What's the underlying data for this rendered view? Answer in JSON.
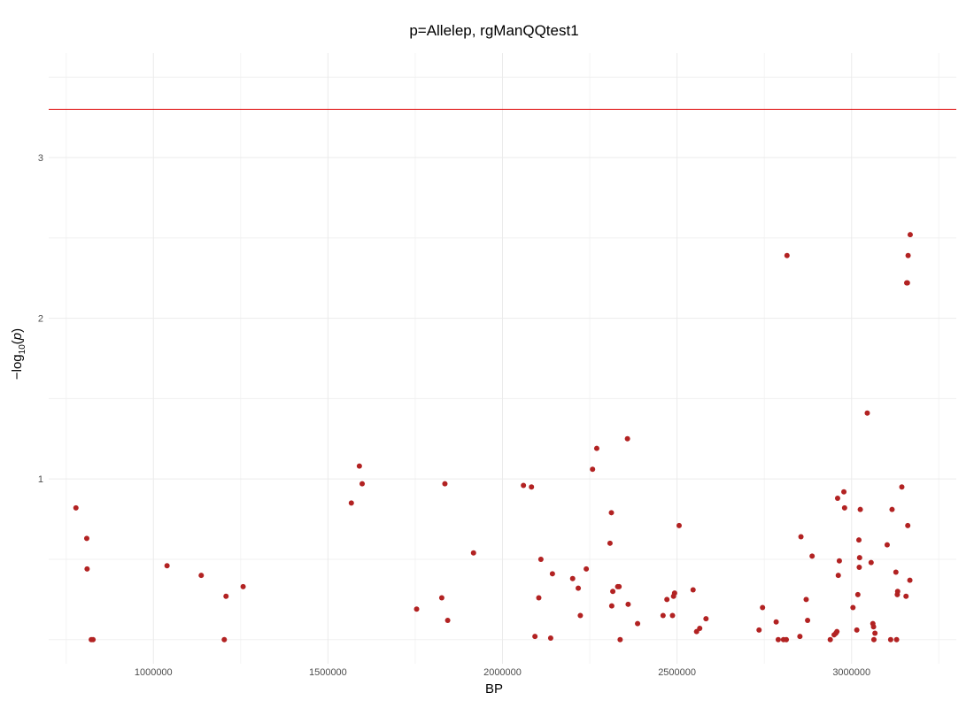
{
  "chart_data": {
    "type": "scatter",
    "title": "p=Allelep, rgManQQtest1",
    "xlabel": "BP",
    "ylabel": {
      "prefix": "−log",
      "subscript": "10",
      "open": "(",
      "variable": "p",
      "close": ")"
    },
    "xlim": [
      700000,
      3300000
    ],
    "ylim": [
      -0.15,
      3.65
    ],
    "x_ticks": [
      {
        "value": 1000000,
        "label": "1000000"
      },
      {
        "value": 1500000,
        "label": "1500000"
      },
      {
        "value": 2000000,
        "label": "2000000"
      },
      {
        "value": 2500000,
        "label": "2500000"
      },
      {
        "value": 3000000,
        "label": "3000000"
      }
    ],
    "y_ticks": [
      {
        "value": 1,
        "label": "1"
      },
      {
        "value": 2,
        "label": "2"
      },
      {
        "value": 3,
        "label": "3"
      }
    ],
    "grid": true,
    "threshold_line": {
      "y": 3.3,
      "color": "#dd0000"
    },
    "point_color": "#b22222",
    "series": [
      {
        "points": [
          [
            778000,
            0.82
          ],
          [
            809000,
            0.63
          ],
          [
            810000,
            0.44
          ],
          [
            822000,
            0.0
          ],
          [
            827000,
            0.0
          ],
          [
            1039000,
            0.46
          ],
          [
            1137000,
            0.4
          ],
          [
            1203000,
            0.0
          ],
          [
            1208000,
            0.27
          ],
          [
            1257000,
            0.33
          ],
          [
            1567000,
            0.85
          ],
          [
            1590000,
            1.08
          ],
          [
            1598000,
            0.97
          ],
          [
            1754000,
            0.19
          ],
          [
            1826000,
            0.26
          ],
          [
            1835000,
            0.97
          ],
          [
            1843000,
            0.12
          ],
          [
            1917000,
            0.54
          ],
          [
            2060000,
            0.96
          ],
          [
            2083000,
            0.95
          ],
          [
            2093000,
            0.02
          ],
          [
            2104000,
            0.26
          ],
          [
            2110000,
            0.5
          ],
          [
            2138000,
            0.01
          ],
          [
            2143000,
            0.41
          ],
          [
            2201000,
            0.38
          ],
          [
            2217000,
            0.32
          ],
          [
            2223000,
            0.15
          ],
          [
            2240000,
            0.44
          ],
          [
            2258000,
            1.06
          ],
          [
            2270000,
            1.19
          ],
          [
            2308000,
            0.6
          ],
          [
            2312000,
            0.79
          ],
          [
            2313000,
            0.21
          ],
          [
            2316000,
            0.3
          ],
          [
            2330000,
            0.33
          ],
          [
            2334000,
            0.33
          ],
          [
            2337000,
            0.0
          ],
          [
            2358000,
            1.25
          ],
          [
            2360000,
            0.22
          ],
          [
            2387000,
            0.1
          ],
          [
            2460000,
            0.15
          ],
          [
            2471000,
            0.25
          ],
          [
            2487000,
            0.15
          ],
          [
            2490000,
            0.27
          ],
          [
            2493000,
            0.29
          ],
          [
            2506000,
            0.71
          ],
          [
            2546000,
            0.31
          ],
          [
            2556000,
            0.05
          ],
          [
            2565000,
            0.07
          ],
          [
            2583000,
            0.13
          ],
          [
            2735000,
            0.06
          ],
          [
            2745000,
            0.2
          ],
          [
            2784000,
            0.11
          ],
          [
            2790000,
            0.0
          ],
          [
            2805000,
            0.0
          ],
          [
            2813000,
            0.0
          ],
          [
            2815000,
            2.39
          ],
          [
            2852000,
            0.02
          ],
          [
            2855000,
            0.64
          ],
          [
            2870000,
            0.25
          ],
          [
            2874000,
            0.12
          ],
          [
            2887000,
            0.52
          ],
          [
            2939000,
            0.0
          ],
          [
            2950000,
            0.03
          ],
          [
            2955000,
            0.04
          ],
          [
            2958000,
            0.05
          ],
          [
            2960000,
            0.88
          ],
          [
            2962000,
            0.4
          ],
          [
            2965000,
            0.49
          ],
          [
            2978000,
            0.92
          ],
          [
            2980000,
            0.82
          ],
          [
            3004000,
            0.2
          ],
          [
            3015000,
            0.06
          ],
          [
            3018000,
            0.28
          ],
          [
            3021000,
            0.62
          ],
          [
            3022000,
            0.45
          ],
          [
            3023000,
            0.51
          ],
          [
            3025000,
            0.81
          ],
          [
            3045000,
            1.41
          ],
          [
            3056000,
            0.48
          ],
          [
            3061000,
            0.1
          ],
          [
            3063000,
            0.08
          ],
          [
            3064000,
            0.0
          ],
          [
            3067000,
            0.04
          ],
          [
            3102000,
            0.59
          ],
          [
            3112000,
            0.0
          ],
          [
            3116000,
            0.81
          ],
          [
            3127000,
            0.42
          ],
          [
            3129000,
            0.0
          ],
          [
            3131000,
            0.28
          ],
          [
            3132000,
            0.3
          ],
          [
            3144000,
            0.95
          ],
          [
            3156000,
            0.27
          ],
          [
            3158000,
            2.22
          ],
          [
            3160000,
            2.22
          ],
          [
            3161000,
            0.71
          ],
          [
            3162000,
            2.39
          ],
          [
            3167000,
            0.37
          ],
          [
            3168000,
            2.52
          ]
        ]
      }
    ]
  }
}
